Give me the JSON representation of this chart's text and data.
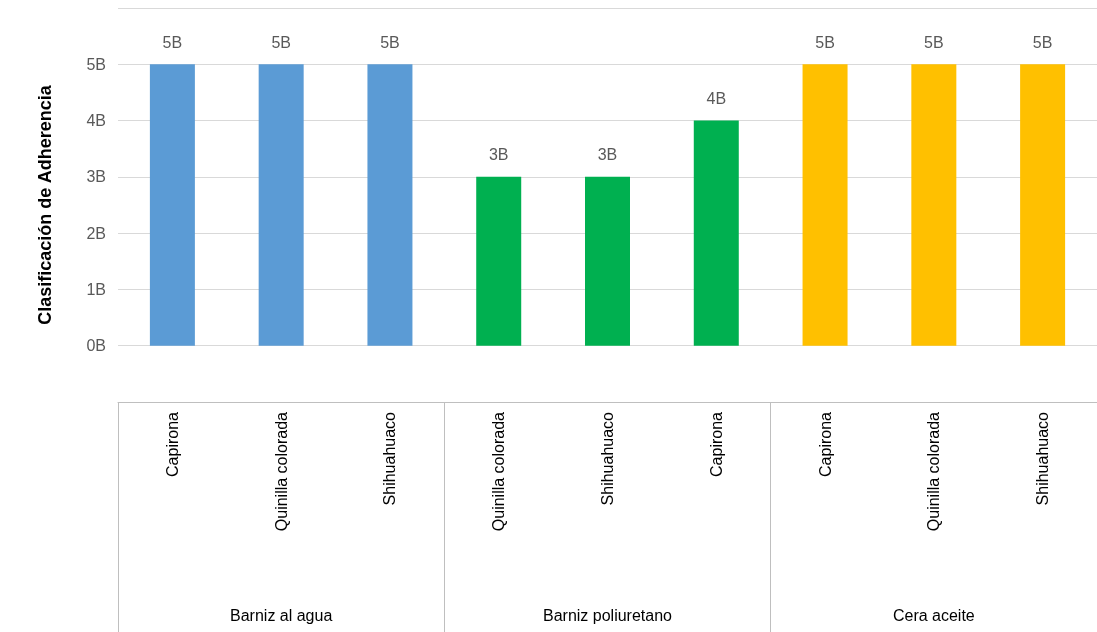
{
  "chart_data": {
    "type": "bar",
    "ylabel": "Clasificación de Adherencia",
    "categories": [
      "Capirona",
      "Quinilla colorada",
      "Shihuahuaco",
      "Quinilla colorada",
      "Shihuahuaco",
      "Capirona",
      "Capirona",
      "Quinilla colorada",
      "Shihuahuaco"
    ],
    "values": [
      5,
      5,
      5,
      3,
      3,
      4,
      5,
      5,
      5
    ],
    "colors": [
      "#5b9bd5",
      "#5b9bd5",
      "#5b9bd5",
      "#00b050",
      "#00b050",
      "#00b050",
      "#ffc000",
      "#ffc000",
      "#ffc000"
    ],
    "value_labels": [
      "5B",
      "5B",
      "5B",
      "3B",
      "3B",
      "4B",
      "5B",
      "5B",
      "5B"
    ],
    "annotations": [
      "Barniz al agua",
      "Barniz poliuretano",
      "Cera aceite"
    ],
    "ylim": [
      -1,
      6
    ],
    "yticks": [
      {
        "value": -1,
        "label": null
      },
      {
        "value": 0,
        "label": "0B"
      },
      {
        "value": 1,
        "label": "1B"
      },
      {
        "value": 2,
        "label": "2B"
      },
      {
        "value": 3,
        "label": "3B"
      },
      {
        "value": 4,
        "label": "4B"
      },
      {
        "value": 5,
        "label": "5B"
      },
      {
        "value": 6,
        "label": null
      }
    ],
    "grid": "y"
  }
}
